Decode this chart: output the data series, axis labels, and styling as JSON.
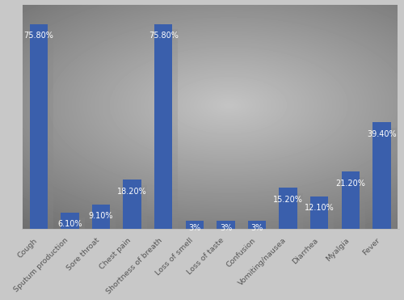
{
  "categories": [
    "Cough",
    "Sputum production",
    "Sore throat",
    "Chest pain",
    "Shortness of breath",
    "Loss of smell",
    "Loss of taste",
    "Confusion",
    "Vomiting/nausea",
    "Diarrhea",
    "Myalgia",
    "Fever"
  ],
  "values": [
    75.8,
    6.1,
    9.1,
    18.2,
    75.8,
    3.0,
    3.0,
    3.0,
    15.2,
    12.1,
    21.2,
    39.4
  ],
  "labels": [
    "75.80%",
    "6.10%",
    "9.10%",
    "18.20%",
    "75.80%",
    "3%",
    "3%",
    "3%",
    "15.20%",
    "12.10%",
    "21.20%",
    "39.40%"
  ],
  "bar_color": "#3a5fac",
  "ylim": [
    0,
    83
  ],
  "label_fontsize": 7.0,
  "tick_fontsize": 6.8,
  "fig_width": 5.0,
  "fig_height": 3.71,
  "dpi": 100
}
